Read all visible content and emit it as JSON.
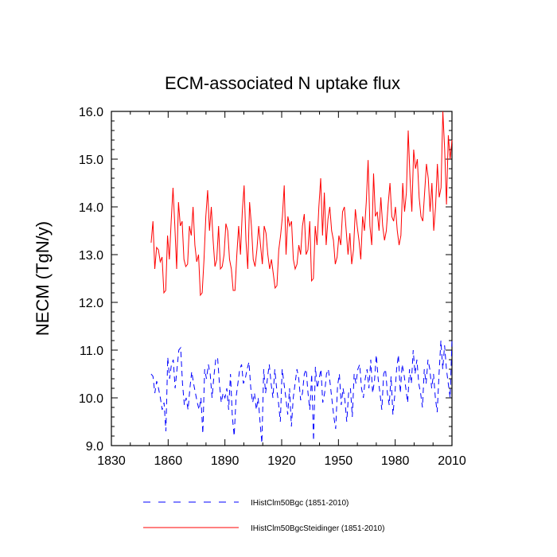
{
  "chart_data": {
    "type": "line",
    "title": "ECM-associated N uptake flux",
    "xlabel": "",
    "ylabel": "NECM  (TgN/y)",
    "xlim": [
      1830,
      2010
    ],
    "ylim": [
      9.0,
      16.0
    ],
    "xticks": [
      1830,
      1860,
      1890,
      1920,
      1950,
      1980,
      2010
    ],
    "xtick_labels": [
      "1830",
      "1860",
      "1890",
      "1920",
      "1950",
      "1980",
      "2010"
    ],
    "yticks": [
      9.0,
      10.0,
      11.0,
      12.0,
      13.0,
      14.0,
      15.0,
      16.0
    ],
    "ytick_labels": [
      "9.0",
      "10.0",
      "11.0",
      "12.0",
      "13.0",
      "14.0",
      "15.0",
      "16.0"
    ],
    "x_start": 1851,
    "x_end": 2010,
    "legend_position": "bottom",
    "series": [
      {
        "name": "IHistClm50Bgc (1851-2010)",
        "color": "#0000ff",
        "style": "dashed",
        "values": [
          10.5,
          10.45,
          10.1,
          10.35,
          10.2,
          10.0,
          9.75,
          9.9,
          9.3,
          10.85,
          10.4,
          10.7,
          10.8,
          10.2,
          10.6,
          11.0,
          11.05,
          10.3,
          9.85,
          10.0,
          9.75,
          10.2,
          10.55,
          10.3,
          10.1,
          9.9,
          9.75,
          10.0,
          9.25,
          10.6,
          10.4,
          10.7,
          10.5,
          10.0,
          10.45,
          10.8,
          10.85,
          10.3,
          9.9,
          10.1,
          10.0,
          10.2,
          9.75,
          10.5,
          9.6,
          9.2,
          10.0,
          10.3,
          10.6,
          10.7,
          10.3,
          10.4,
          10.6,
          10.75,
          10.2,
          9.9,
          10.1,
          9.75,
          10.0,
          9.5,
          9.05,
          10.6,
          10.1,
          10.4,
          10.7,
          10.3,
          10.0,
          10.6,
          10.2,
          9.9,
          9.5,
          10.6,
          10.3,
          10.0,
          9.65,
          10.2,
          9.4,
          10.0,
          10.3,
          10.6,
          10.4,
          9.95,
          10.1,
          10.5,
          10.6,
          10.1,
          9.75,
          10.5,
          9.1,
          10.65,
          10.2,
          10.4,
          10.6,
          9.9,
          10.1,
          10.5,
          10.6,
          10.3,
          9.95,
          9.6,
          9.35,
          10.25,
          10.5,
          9.85,
          10.2,
          9.95,
          9.5,
          10.1,
          10.2,
          9.6,
          10.5,
          10.3,
          10.6,
          10.7,
          10.2,
          10.0,
          10.4,
          10.6,
          10.2,
          10.8,
          10.1,
          10.35,
          10.9,
          10.4,
          10.1,
          9.75,
          10.5,
          10.6,
          10.1,
          9.85,
          10.45,
          9.65,
          10.05,
          10.6,
          10.9,
          10.1,
          10.7,
          10.5,
          10.2,
          9.9,
          10.6,
          10.3,
          11.0,
          10.5,
          10.8,
          10.3,
          10.1,
          9.8,
          10.6,
          10.3,
          10.8,
          10.6,
          10.2,
          10.5,
          10.0,
          9.7,
          10.5,
          11.2,
          10.6,
          11.1,
          10.6,
          10.3,
          10.0,
          11.2
        ]
      },
      {
        "name": "IHistClm50BgcSteidinger (1851-2010)",
        "color": "#ff0000",
        "style": "solid",
        "values": [
          13.25,
          13.7,
          12.7,
          13.15,
          13.1,
          12.85,
          12.95,
          12.2,
          12.25,
          13.4,
          12.9,
          13.7,
          14.4,
          13.6,
          12.7,
          14.1,
          13.6,
          13.7,
          12.9,
          12.75,
          12.8,
          13.6,
          13.4,
          14.0,
          13.2,
          12.85,
          13.0,
          12.15,
          12.2,
          12.9,
          13.8,
          14.35,
          13.5,
          14.0,
          13.3,
          12.75,
          12.9,
          13.6,
          12.7,
          12.75,
          13.0,
          13.65,
          13.5,
          12.9,
          12.7,
          12.25,
          12.25,
          13.0,
          13.6,
          13.0,
          13.9,
          14.45,
          13.3,
          12.7,
          14.1,
          13.6,
          12.9,
          12.75,
          13.1,
          13.6,
          13.2,
          12.8,
          13.6,
          13.45,
          13.0,
          12.7,
          12.9,
          12.6,
          12.3,
          12.35,
          13.1,
          13.4,
          13.8,
          14.45,
          13.0,
          13.8,
          13.6,
          13.7,
          12.9,
          12.7,
          12.8,
          13.2,
          13.0,
          13.6,
          13.85,
          13.0,
          13.1,
          13.7,
          12.45,
          12.5,
          13.6,
          13.2,
          14.0,
          14.6,
          13.4,
          14.3,
          13.2,
          13.75,
          14.0,
          13.5,
          13.3,
          12.8,
          12.95,
          13.4,
          13.2,
          13.9,
          14.0,
          13.5,
          13.0,
          13.45,
          12.8,
          13.1,
          13.95,
          13.6,
          13.3,
          12.9,
          13.8,
          13.5,
          14.1,
          14.98,
          13.6,
          13.2,
          14.7,
          13.8,
          13.9,
          13.5,
          14.2,
          13.6,
          13.3,
          13.5,
          14.05,
          14.5,
          13.8,
          13.7,
          14.0,
          13.5,
          13.2,
          13.4,
          14.5,
          13.9,
          14.3,
          15.6,
          14.6,
          13.9,
          15.2,
          14.8,
          15.0,
          14.2,
          13.8,
          13.7,
          14.3,
          14.9,
          14.6,
          13.9,
          14.5,
          13.5,
          14.0,
          14.9,
          14.2,
          14.4,
          16.0,
          15.2,
          14.05,
          15.5,
          15.0,
          15.4
        ]
      }
    ]
  }
}
